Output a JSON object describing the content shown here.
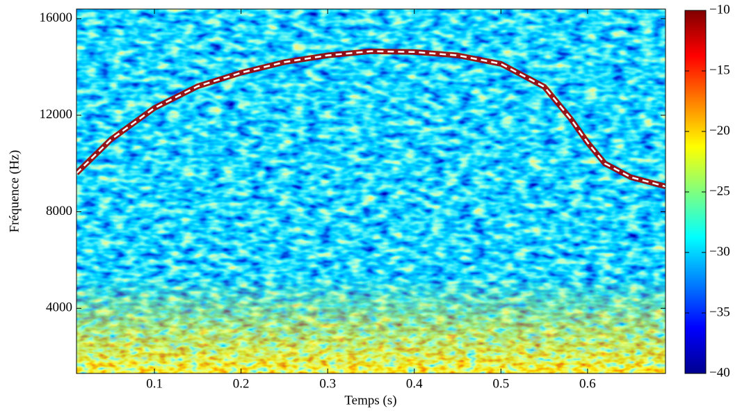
{
  "chart_data": {
    "type": "spectrogram",
    "xlabel": "Temps (s)",
    "ylabel": "Fréquence (Hz)",
    "xlim": [
      0.01,
      0.69
    ],
    "ylim": [
      1300,
      16400
    ],
    "xticks": [
      0.1,
      0.2,
      0.3,
      0.4,
      0.5,
      0.6
    ],
    "yticks": [
      4000,
      8000,
      12000,
      16000
    ],
    "colormap": "jet",
    "clim": [
      -40,
      -10
    ],
    "cticks": [
      {
        "value": -10,
        "label": "−10"
      },
      {
        "value": -15,
        "label": "−15"
      },
      {
        "value": -20,
        "label": "−20"
      },
      {
        "value": -25,
        "label": "−25"
      },
      {
        "value": -30,
        "label": "−30"
      },
      {
        "value": -35,
        "label": "−35"
      },
      {
        "value": -40,
        "label": "−40"
      }
    ],
    "series": [
      {
        "color": "#ffffff",
        "x": [
          0.01,
          0.05,
          0.1,
          0.15,
          0.2,
          0.25,
          0.3,
          0.35,
          0.4,
          0.45,
          0.5,
          0.55,
          0.58,
          0.6,
          0.62,
          0.65,
          0.69
        ],
        "values": [
          9600,
          11000,
          12300,
          13200,
          13760,
          14200,
          14480,
          14650,
          14620,
          14480,
          14130,
          13180,
          11880,
          10870,
          10000,
          9430,
          9050
        ]
      }
    ]
  }
}
